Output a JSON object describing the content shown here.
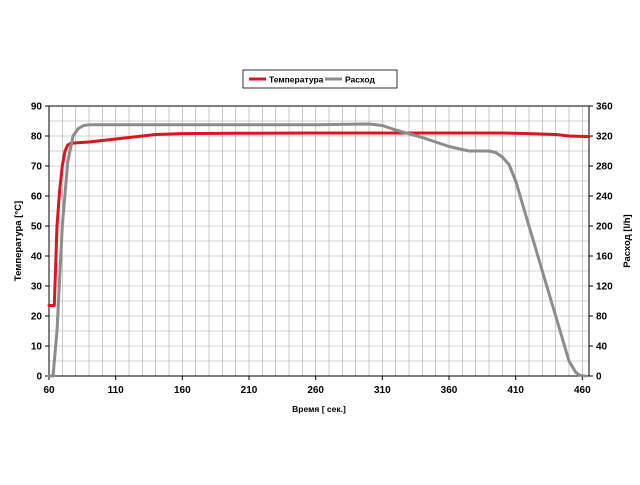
{
  "chart_data": {
    "type": "line",
    "xlabel": "Время [ сек.]",
    "ylabel_left": "Температура [°C]",
    "ylabel_right": "Расход [l/h]",
    "xlim": [
      60,
      465
    ],
    "ylim_left": [
      0,
      90
    ],
    "ylim_right": [
      0,
      360
    ],
    "xticks": [
      60,
      110,
      160,
      210,
      260,
      310,
      360,
      410,
      460
    ],
    "yticks_left": [
      0,
      10,
      20,
      30,
      40,
      50,
      60,
      70,
      80,
      90
    ],
    "yticks_right": [
      0,
      40,
      80,
      120,
      160,
      200,
      240,
      280,
      320,
      360
    ],
    "grid": true,
    "grid_x_step": 10,
    "grid_y_step": 5,
    "legend_position": "top-center",
    "series": [
      {
        "name": "Температура",
        "axis": "left",
        "color": "#e0141e",
        "x": [
          60,
          64,
          66,
          68,
          70,
          72,
          74,
          76,
          80,
          90,
          100,
          110,
          120,
          130,
          140,
          160,
          200,
          260,
          310,
          360,
          400,
          420,
          440,
          450,
          465
        ],
        "y": [
          23.5,
          23.5,
          50,
          62,
          70,
          75,
          77,
          77.5,
          77.7,
          78,
          78.5,
          79,
          79.5,
          80,
          80.5,
          80.8,
          80.9,
          81,
          81,
          81,
          81,
          80.8,
          80.5,
          80,
          79.8
        ]
      },
      {
        "name": "Расход",
        "axis": "right",
        "color": "#8c8c8c",
        "x": [
          60,
          63,
          66,
          70,
          74,
          78,
          82,
          86,
          90,
          100,
          120,
          160,
          260,
          300,
          310,
          320,
          340,
          360,
          375,
          390,
          395,
          400,
          405,
          410,
          420,
          430,
          440,
          450,
          455,
          458,
          462
        ],
        "y": [
          0,
          0,
          60,
          200,
          285,
          320,
          330,
          334,
          335,
          335,
          335,
          335,
          335,
          336,
          334,
          328,
          318,
          306,
          300,
          300,
          298,
          292,
          282,
          260,
          200,
          140,
          80,
          20,
          5,
          1,
          0
        ]
      }
    ]
  }
}
